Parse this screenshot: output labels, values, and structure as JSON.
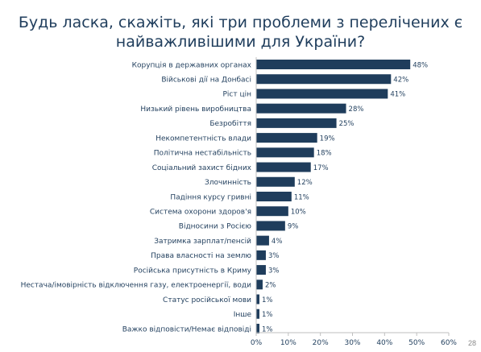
{
  "slide": {
    "title_line1": "Будь ласка, скажіть, які три проблеми з перелічених є",
    "title_line2": "найважливішими для України?",
    "page_number": "28"
  },
  "chart_data": {
    "type": "bar",
    "orientation": "horizontal",
    "categories": [
      "Корупція в державних органах",
      "Військові дії на Донбасі",
      "Ріст цін",
      "Низький рівень виробництва",
      "Безробіття",
      "Некомпетентність влади",
      "Політична нестабільність",
      "Соціальний захист бідних",
      "Злочинність",
      "Падіння курсу гривні",
      "Система охорони здоров'я",
      "Відносини з Росією",
      "Затримка зарплат/пенсій",
      "Права власності на землю",
      "Російська присутність в Криму",
      "Нестача/імовірність відключення газу, електроенергії, води",
      "Статус російської мови",
      "Інше",
      "Важко відповісти/Немає відповіді"
    ],
    "values": [
      48,
      42,
      41,
      28,
      25,
      19,
      18,
      17,
      12,
      11,
      10,
      9,
      4,
      3,
      3,
      2,
      1,
      1,
      1
    ],
    "value_labels": [
      "48%",
      "42%",
      "41%",
      "28%",
      "25%",
      "19%",
      "18%",
      "17%",
      "12%",
      "11%",
      "10%",
      "9%",
      "4%",
      "3%",
      "3%",
      "2%",
      "1%",
      "1%",
      "1%"
    ],
    "x_ticks": [
      "0%",
      "10%",
      "20%",
      "30%",
      "40%",
      "50%",
      "60%"
    ],
    "xlim": [
      0,
      60
    ],
    "bar_color": "#1f3d5c",
    "grid": false,
    "legend": "none"
  }
}
